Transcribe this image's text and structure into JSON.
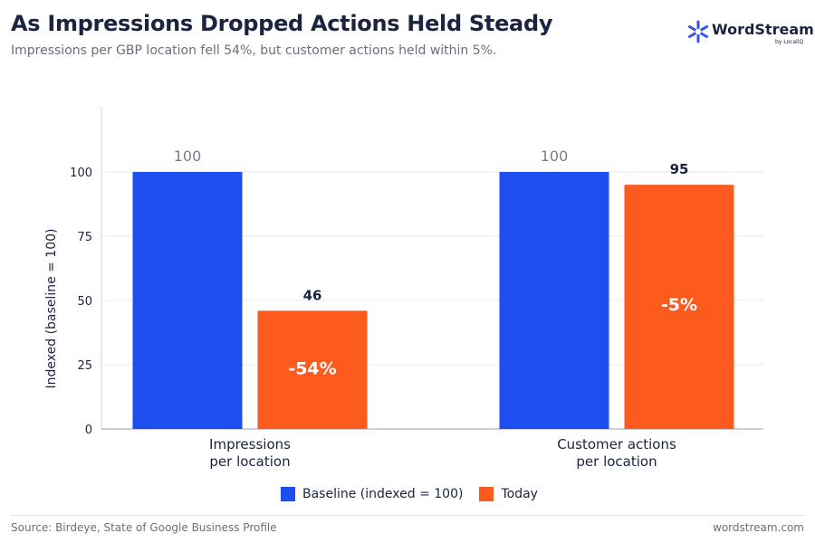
{
  "title": "As Impressions Dropped Actions Held Steady",
  "subtitle": "Impressions per GBP location fell 54%, but customer actions held within 5%.",
  "brand": {
    "name": "WordStream",
    "tagline": "by LocaliQ",
    "color": "#3251ef"
  },
  "footer": {
    "source": "Source: Birdeye, State of Google Business Profile",
    "site": "wordstream.com"
  },
  "colors": {
    "baseline": "#1f4ef0",
    "today": "#fd5a1e",
    "text": "#1b2340",
    "muted": "#6b6f7b"
  },
  "chart_data": {
    "type": "bar",
    "categories": [
      [
        "Impressions",
        "per location"
      ],
      [
        "Customer actions",
        "per location"
      ]
    ],
    "series": [
      {
        "name": "Baseline (indexed = 100)",
        "values": [
          100,
          100
        ],
        "labels": [
          "100",
          "100"
        ]
      },
      {
        "name": "Today",
        "values": [
          46,
          95
        ],
        "labels": [
          "46",
          "95"
        ],
        "inner_labels": [
          "-54%",
          "-5%"
        ]
      }
    ],
    "ylabel": "Indexed (baseline = 100)",
    "ylim": [
      0,
      100
    ],
    "yticks": [
      0,
      25,
      50,
      75,
      100
    ],
    "grid": true,
    "legend": "bottom"
  }
}
